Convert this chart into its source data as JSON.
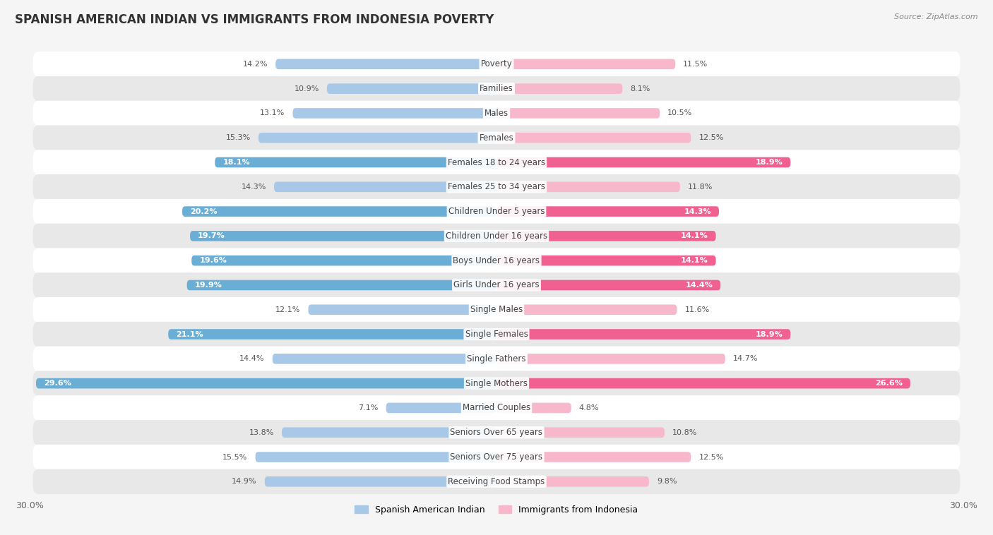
{
  "title": "SPANISH AMERICAN INDIAN VS IMMIGRANTS FROM INDONESIA POVERTY",
  "source": "Source: ZipAtlas.com",
  "categories": [
    "Poverty",
    "Families",
    "Males",
    "Females",
    "Females 18 to 24 years",
    "Females 25 to 34 years",
    "Children Under 5 years",
    "Children Under 16 years",
    "Boys Under 16 years",
    "Girls Under 16 years",
    "Single Males",
    "Single Females",
    "Single Fathers",
    "Single Mothers",
    "Married Couples",
    "Seniors Over 65 years",
    "Seniors Over 75 years",
    "Receiving Food Stamps"
  ],
  "left_values": [
    14.2,
    10.9,
    13.1,
    15.3,
    18.1,
    14.3,
    20.2,
    19.7,
    19.6,
    19.9,
    12.1,
    21.1,
    14.4,
    29.6,
    7.1,
    13.8,
    15.5,
    14.9
  ],
  "right_values": [
    11.5,
    8.1,
    10.5,
    12.5,
    18.9,
    11.8,
    14.3,
    14.1,
    14.1,
    14.4,
    11.6,
    18.9,
    14.7,
    26.6,
    4.8,
    10.8,
    12.5,
    9.8
  ],
  "left_color_normal": "#a8c8e8",
  "right_color_normal": "#f7b8cc",
  "left_color_highlight": "#6aaed6",
  "right_color_highlight": "#f06090",
  "highlight_rows": [
    4,
    6,
    7,
    8,
    9,
    11,
    13
  ],
  "left_label": "Spanish American Indian",
  "right_label": "Immigrants from Indonesia",
  "xlim": 30.0,
  "bg_color": "#f5f5f5",
  "row_bg_even": "#ffffff",
  "row_bg_odd": "#e8e8e8",
  "title_fontsize": 12,
  "label_fontsize": 8.5,
  "value_fontsize": 8.0
}
